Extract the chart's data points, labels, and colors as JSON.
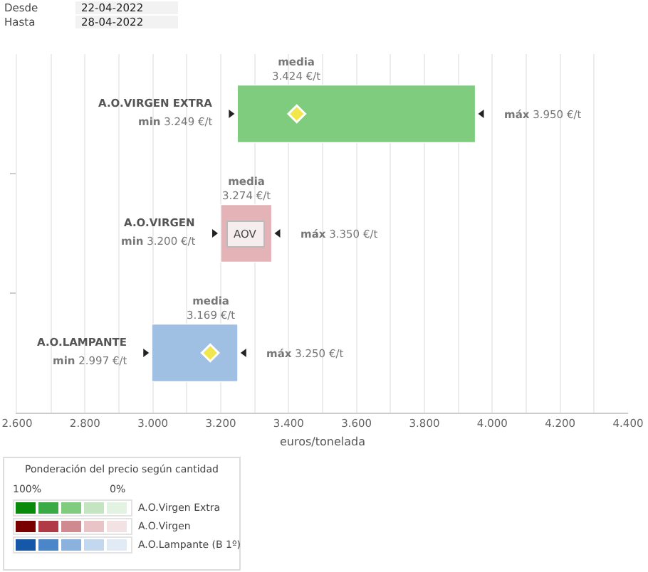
{
  "chart_data": {
    "type": "bar",
    "orientation": "horizontal",
    "categories": [
      "A.O.VIRGEN EXTRA",
      "A.O.VIRGEN",
      "A.O.LAMPANTE"
    ],
    "base": [
      3249,
      3200,
      2997
    ],
    "values": [
      701,
      150,
      253
    ],
    "colors": [
      "#7fcc7f",
      "#e3b3b7",
      "#9fbfe3"
    ],
    "series": [
      {
        "type": "scatter",
        "color": "#f2e64d",
        "values": [
          3424,
          null,
          3169
        ]
      }
    ],
    "marker": "diamond",
    "xlim": [
      2600,
      4400
    ],
    "xticks": [
      {
        "value": 2600,
        "label": "2.600"
      },
      {
        "value": 2700,
        "label": null
      },
      {
        "value": 2800,
        "label": "2.800"
      },
      {
        "value": 2900,
        "label": null
      },
      {
        "value": 3000,
        "label": "3.000"
      },
      {
        "value": 3100,
        "label": null
      },
      {
        "value": 3200,
        "label": "3.200"
      },
      {
        "value": 3300,
        "label": null
      },
      {
        "value": 3400,
        "label": "3.400"
      },
      {
        "value": 3500,
        "label": null
      },
      {
        "value": 3600,
        "label": "3.600"
      },
      {
        "value": 3700,
        "label": null
      },
      {
        "value": 3800,
        "label": "3.800"
      },
      {
        "value": 3900,
        "label": null
      },
      {
        "value": 4000,
        "label": "4.000"
      },
      {
        "value": 4100,
        "label": null
      },
      {
        "value": 4200,
        "label": "4.200"
      },
      {
        "value": 4300,
        "label": null
      },
      {
        "value": 4400,
        "label": "4.400"
      }
    ],
    "xlabel": "euros/tonelada",
    "grid": "x",
    "tick_labels": "x",
    "legend_title": "Ponderación del precio según cantidad",
    "annotations": [
      "Desde",
      "22-04-2022",
      "Hasta",
      "28-04-2022",
      "100%",
      "0%",
      "A.O.Virgen Extra",
      "A.O.Virgen",
      "A.O.Lampante (B 1º)",
      "min 3.249 €/t",
      "máx 3.950 €/t",
      "min 3.200 €/t",
      "máx 3.350 €/t",
      "min 2.997 €/t",
      "máx 3.250 €/t",
      "AOV",
      {
        "text": "media\n3.424 €/t",
        "x": 3424,
        "y": "A.O.VIRGEN EXTRA"
      },
      {
        "text": "media\n3.274 €/t",
        "x": 3274,
        "y": "A.O.VIRGEN"
      },
      {
        "text": "media\n3.169 €/t",
        "x": 3169,
        "y": "A.O.LAMPANTE"
      }
    ]
  }
}
